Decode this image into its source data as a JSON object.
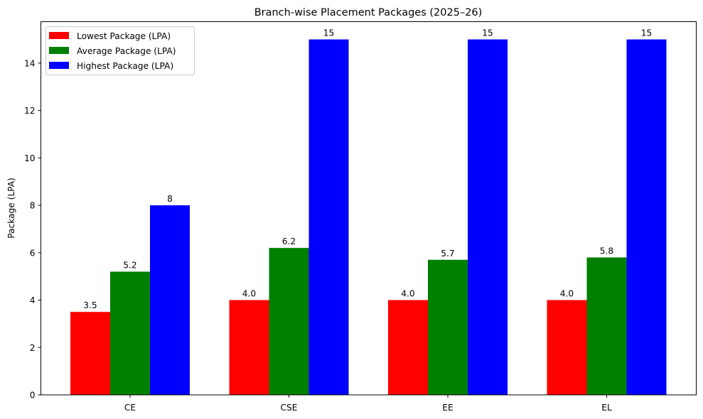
{
  "chart_data": {
    "type": "bar",
    "title": "Branch-wise Placement Packages (2025–26)",
    "xlabel": "",
    "ylabel": "Package (LPA)",
    "categories": [
      "CE",
      "CSE",
      "EE",
      "EL"
    ],
    "series": [
      {
        "name": "Lowest Package (LPA)",
        "color": "#ff0000",
        "values": [
          3.5,
          4.0,
          4.0,
          4.0
        ],
        "labels": [
          "3.5",
          "4.0",
          "4.0",
          "4.0"
        ]
      },
      {
        "name": "Average Package (LPA)",
        "color": "#008000",
        "values": [
          5.2,
          6.2,
          5.7,
          5.8
        ],
        "labels": [
          "5.2",
          "6.2",
          "5.7",
          "5.8"
        ]
      },
      {
        "name": "Highest Package (LPA)",
        "color": "#0000ff",
        "values": [
          8,
          15,
          15,
          15
        ],
        "labels": [
          "8",
          "15",
          "15",
          "15"
        ]
      }
    ],
    "ylim": [
      0,
      15.75
    ],
    "yticks": [
      0,
      2,
      4,
      6,
      8,
      10,
      12,
      14
    ],
    "grid": false,
    "legend_position": "upper left"
  }
}
